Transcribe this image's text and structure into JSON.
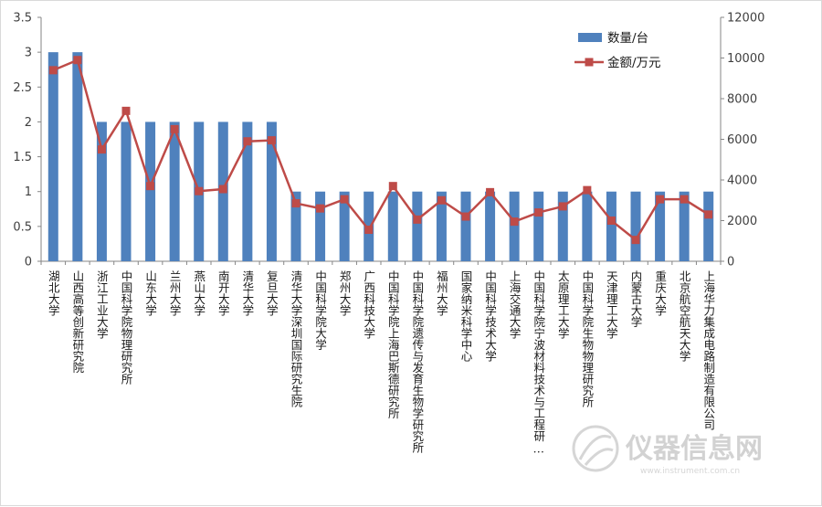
{
  "chart_data": {
    "type": "bar",
    "title": "",
    "categories": [
      "湖北大学",
      "山西高等创新研究院",
      "浙江工业大学",
      "中国科学院物理研究所",
      "山东大学",
      "兰州大学",
      "燕山大学",
      "南开大学",
      "清华大学",
      "复旦大学",
      "清华大学深圳国际研究生院",
      "中国科学院大学",
      "郑州大学",
      "广西科技大学",
      "中国科学院上海巴斯德研究所",
      "中国科学院遗传与发育生物学研究所",
      "福州大学",
      "国家纳米科学中心",
      "中国科学技术大学",
      "上海交通大学",
      "中国科学院宁波材料技术与工程研…",
      "太原理工大学",
      "中国科学院生物物理研究所",
      "天津理工大学",
      "内蒙古大学",
      "重庆大学",
      "北京航空航天大学",
      "上海华力集成电路制造有限公司"
    ],
    "series": [
      {
        "name": "数量/台",
        "type": "bar",
        "axis": "left",
        "color": "#4f81bd",
        "values": [
          3,
          3,
          2,
          2,
          2,
          2,
          2,
          2,
          2,
          2,
          1,
          1,
          1,
          1,
          1,
          1,
          1,
          1,
          1,
          1,
          1,
          1,
          1,
          1,
          1,
          1,
          1,
          1
        ]
      },
      {
        "name": "金额/万元",
        "type": "line",
        "axis": "right",
        "color": "#be4b48",
        "values": [
          9400,
          9900,
          5500,
          7400,
          3700,
          6500,
          3450,
          3550,
          5900,
          5950,
          2850,
          2600,
          3050,
          1550,
          3700,
          2050,
          3000,
          2200,
          3400,
          1950,
          2400,
          2700,
          3500,
          2000,
          1050,
          3050,
          3050,
          2300
        ]
      }
    ],
    "y_left": {
      "min": 0,
      "max": 3.5,
      "step": 0.5,
      "ticks": [
        "0",
        "0.5",
        "1",
        "1.5",
        "2",
        "2.5",
        "3",
        "3.5"
      ]
    },
    "y_right": {
      "min": 0,
      "max": 12000,
      "step": 2000,
      "ticks": [
        "0",
        "2000",
        "4000",
        "6000",
        "8000",
        "10000",
        "12000"
      ]
    },
    "legend": {
      "placement": "top-right",
      "items": [
        "数量/台",
        "金额/万元"
      ]
    },
    "grid": false
  },
  "watermark": {
    "text": "仪器信息网",
    "subtext": "www.instrument.com.cn"
  }
}
